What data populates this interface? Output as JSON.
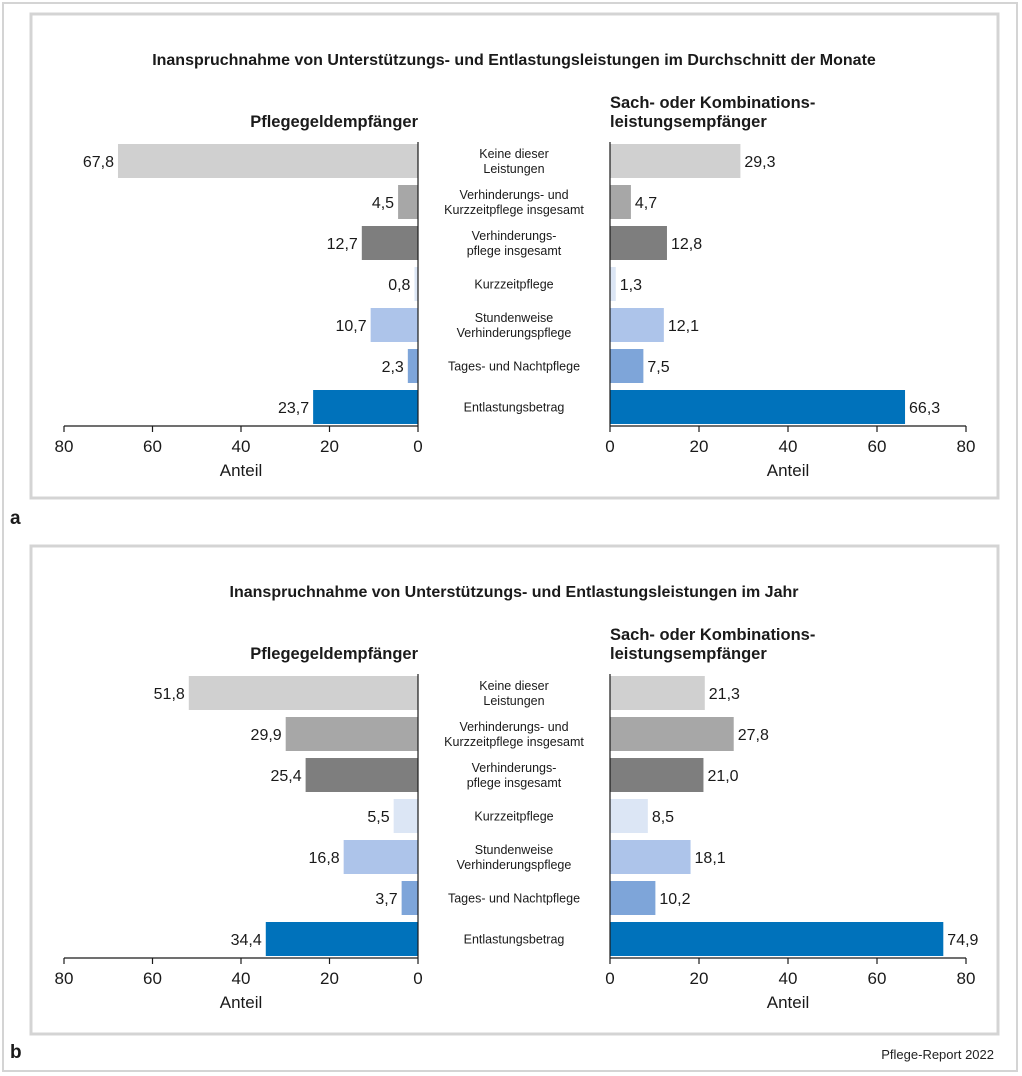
{
  "source": "Pflege-Report 2022",
  "chart_data": [
    {
      "type": "bar",
      "panel_label": "a",
      "title": "Inanspruchnahme von Unterstützungs- und Entlastungsleistungen im Durchschnitt der Monate",
      "categories": [
        [
          "Keine dieser",
          "Leistungen"
        ],
        [
          "Verhinderungs- und",
          "Kurzzeitpflege insgesamt"
        ],
        [
          "Verhinderungs-",
          "pflege insgesamt"
        ],
        [
          "Kurzzeitpflege"
        ],
        [
          "Stundenweise",
          "Verhinderungspflege"
        ],
        [
          "Tages- und Nachtpflege"
        ],
        [
          "Entlastungsbetrag"
        ]
      ],
      "bar_colors": [
        "#d0d0d0",
        "#a7a7a7",
        "#7e7e7e",
        "#dce6f5",
        "#adc4ea",
        "#7ea5d9",
        "#0072bb"
      ],
      "series": [
        {
          "name": "Pflegegeldempfänger",
          "title_lines": [
            "Pflegegeldempfänger"
          ],
          "values": [
            67.8,
            4.5,
            12.7,
            0.8,
            10.7,
            2.3,
            23.7
          ],
          "labels": [
            "67,8",
            "4,5",
            "12,7",
            "0,8",
            "10,7",
            "2,3",
            "23,7"
          ]
        },
        {
          "name": "Sach- oder Kombinationsleistungsempfänger",
          "title_lines": [
            "Sach- oder Kombinations-",
            "leistungsempfänger"
          ],
          "values": [
            29.3,
            4.7,
            12.8,
            1.3,
            12.1,
            7.5,
            66.3
          ],
          "labels": [
            "29,3",
            "4,7",
            "12,8",
            "1,3",
            "12,1",
            "7,5",
            "66,3"
          ]
        }
      ],
      "xlabel": "Anteil",
      "xlim": [
        0,
        80
      ],
      "ticks": [
        0,
        20,
        40,
        60,
        80
      ]
    },
    {
      "type": "bar",
      "panel_label": "b",
      "title": "Inanspruchnahme von Unterstützungs- und Entlastungsleistungen im Jahr",
      "categories": [
        [
          "Keine dieser",
          "Leistungen"
        ],
        [
          "Verhinderungs- und",
          "Kurzzeitpflege insgesamt"
        ],
        [
          "Verhinderungs-",
          "pflege insgesamt"
        ],
        [
          "Kurzzeitpflege"
        ],
        [
          "Stundenweise",
          "Verhinderungspflege"
        ],
        [
          "Tages- und Nachtpflege"
        ],
        [
          "Entlastungsbetrag"
        ]
      ],
      "bar_colors": [
        "#d0d0d0",
        "#a7a7a7",
        "#7e7e7e",
        "#dce6f5",
        "#adc4ea",
        "#7ea5d9",
        "#0072bb"
      ],
      "series": [
        {
          "name": "Pflegegeldempfänger",
          "title_lines": [
            "Pflegegeldempfänger"
          ],
          "values": [
            51.8,
            29.9,
            25.4,
            5.5,
            16.8,
            3.7,
            34.4
          ],
          "labels": [
            "51,8",
            "29,9",
            "25,4",
            "5,5",
            "16,8",
            "3,7",
            "34,4"
          ]
        },
        {
          "name": "Sach- oder Kombinationsleistungsempfänger",
          "title_lines": [
            "Sach- oder Kombinations-",
            "leistungsempfänger"
          ],
          "values": [
            21.3,
            27.8,
            21.0,
            8.5,
            18.1,
            10.2,
            74.9
          ],
          "labels": [
            "21,3",
            "27,8",
            "21,0",
            "8,5",
            "18,1",
            "10,2",
            "74,9"
          ]
        }
      ],
      "xlabel": "Anteil",
      "xlim": [
        0,
        80
      ],
      "ticks": [
        0,
        20,
        40,
        60,
        80
      ]
    }
  ]
}
